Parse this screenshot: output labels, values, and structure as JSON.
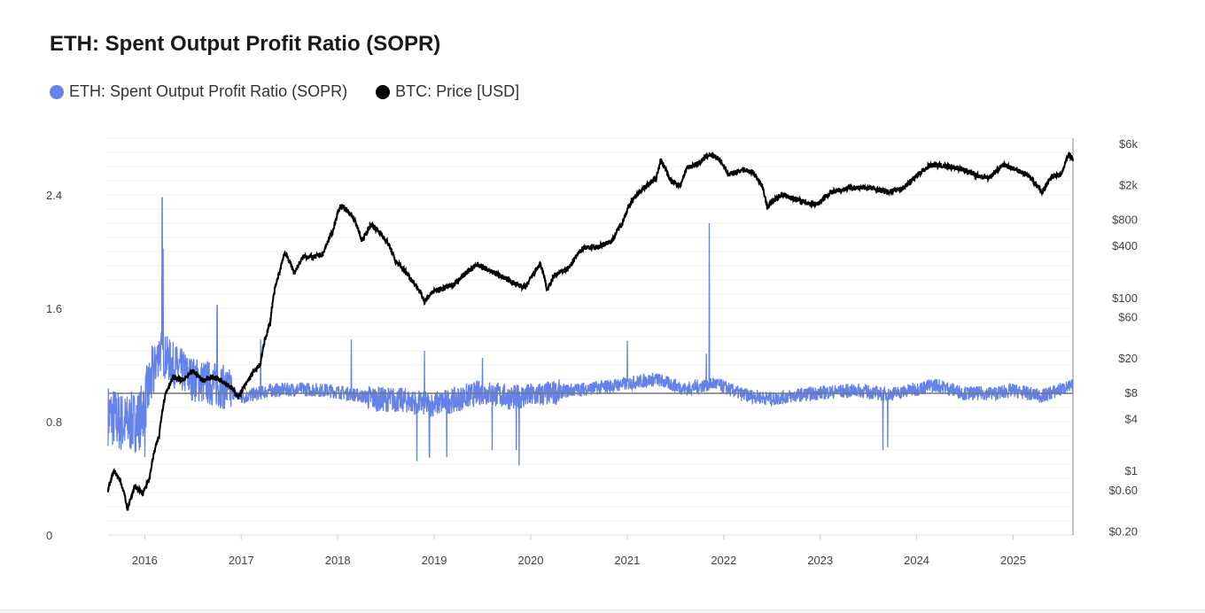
{
  "title": "ETH: Spent Output Profit Ratio (SOPR)",
  "legend": [
    {
      "label": "ETH: Spent Output Profit Ratio (SOPR)",
      "color": "#6482e8"
    },
    {
      "label": "BTC: Price [USD]",
      "color": "#000000"
    }
  ],
  "colors": {
    "sopr": "#6482e8",
    "btc": "#000000",
    "ref_line": "#777777"
  },
  "chart_data": {
    "type": "line",
    "title": "ETH: Spent Output Profit Ratio (SOPR)",
    "x_range": [
      2015.62,
      2025.62
    ],
    "x_ticks": [
      "2016",
      "2017",
      "2018",
      "2019",
      "2020",
      "2021",
      "2022",
      "2023",
      "2024",
      "2025"
    ],
    "y_left": {
      "ticks": [
        0,
        0.8,
        1.6,
        2.4
      ],
      "tick_labels": [
        "0",
        "0.8",
        "1.6",
        "2.4"
      ],
      "range": [
        0,
        2.8
      ]
    },
    "y_right": {
      "scale": "log",
      "ticks": [
        0.2,
        0.6,
        1,
        4,
        8,
        20,
        60,
        100,
        400,
        800,
        2000,
        6000
      ],
      "tick_labels": [
        "$0.20",
        "$0.60",
        "$1",
        "$4",
        "$8",
        "$20",
        "$60",
        "$100",
        "$400",
        "$800",
        "$2k",
        "$6k"
      ]
    },
    "reference_line": 1.0,
    "series": [
      {
        "name": "ETH: Spent Output Profit Ratio (SOPR)",
        "axis": "left",
        "baseline": [
          [
            2015.62,
            0.85
          ],
          [
            2015.8,
            0.78
          ],
          [
            2015.95,
            0.82
          ],
          [
            2016.05,
            1.05
          ],
          [
            2016.15,
            1.3
          ],
          [
            2016.3,
            1.2
          ],
          [
            2016.5,
            1.1
          ],
          [
            2016.8,
            1.05
          ],
          [
            2017.0,
            0.97
          ],
          [
            2017.3,
            1.02
          ],
          [
            2017.6,
            1.03
          ],
          [
            2017.9,
            1.02
          ],
          [
            2018.1,
            1.0
          ],
          [
            2018.4,
            0.96
          ],
          [
            2018.7,
            0.95
          ],
          [
            2018.95,
            0.92
          ],
          [
            2019.2,
            0.95
          ],
          [
            2019.5,
            1.01
          ],
          [
            2019.8,
            0.97
          ],
          [
            2020.1,
            0.99
          ],
          [
            2020.4,
            1.02
          ],
          [
            2020.7,
            1.04
          ],
          [
            2021.0,
            1.07
          ],
          [
            2021.3,
            1.1
          ],
          [
            2021.6,
            1.03
          ],
          [
            2021.9,
            1.07
          ],
          [
            2022.2,
            0.99
          ],
          [
            2022.5,
            0.96
          ],
          [
            2022.8,
            0.99
          ],
          [
            2023.1,
            1.01
          ],
          [
            2023.4,
            1.02
          ],
          [
            2023.7,
            0.99
          ],
          [
            2024.0,
            1.03
          ],
          [
            2024.2,
            1.06
          ],
          [
            2024.5,
            1.0
          ],
          [
            2024.8,
            1.0
          ],
          [
            2025.0,
            1.02
          ],
          [
            2025.3,
            0.98
          ],
          [
            2025.5,
            1.03
          ],
          [
            2025.62,
            1.05
          ]
        ],
        "spikes": [
          [
            2016.18,
            2.38
          ],
          [
            2016.19,
            2.02
          ],
          [
            2016.75,
            1.62
          ],
          [
            2017.2,
            1.38
          ],
          [
            2018.14,
            1.38
          ],
          [
            2018.9,
            1.3
          ],
          [
            2019.5,
            1.25
          ],
          [
            2021.0,
            1.37
          ],
          [
            2021.85,
            2.2
          ],
          [
            2021.82,
            1.28
          ],
          [
            2015.9,
            0.58
          ],
          [
            2016.0,
            0.55
          ],
          [
            2018.82,
            0.52
          ],
          [
            2018.95,
            0.55
          ],
          [
            2019.13,
            0.55
          ],
          [
            2019.6,
            0.6
          ],
          [
            2019.85,
            0.6
          ],
          [
            2019.88,
            0.49
          ],
          [
            2023.65,
            0.6
          ],
          [
            2023.7,
            0.62
          ]
        ]
      },
      {
        "name": "BTC: Price [USD]",
        "axis": "right",
        "points": [
          [
            2015.62,
            0.6
          ],
          [
            2015.68,
            1.0
          ],
          [
            2015.75,
            0.75
          ],
          [
            2015.82,
            0.35
          ],
          [
            2015.9,
            0.65
          ],
          [
            2015.98,
            0.55
          ],
          [
            2016.05,
            0.8
          ],
          [
            2016.15,
            2.5
          ],
          [
            2016.22,
            8
          ],
          [
            2016.3,
            12
          ],
          [
            2016.4,
            11
          ],
          [
            2016.5,
            14
          ],
          [
            2016.6,
            11
          ],
          [
            2016.7,
            12
          ],
          [
            2016.8,
            11
          ],
          [
            2016.9,
            9
          ],
          [
            2016.97,
            7
          ],
          [
            2017.05,
            10
          ],
          [
            2017.2,
            17
          ],
          [
            2017.3,
            50
          ],
          [
            2017.4,
            200
          ],
          [
            2017.45,
            330
          ],
          [
            2017.55,
            190
          ],
          [
            2017.65,
            300
          ],
          [
            2017.75,
            290
          ],
          [
            2017.85,
            320
          ],
          [
            2017.95,
            580
          ],
          [
            2018.03,
            1150
          ],
          [
            2018.15,
            880
          ],
          [
            2018.25,
            440
          ],
          [
            2018.35,
            700
          ],
          [
            2018.5,
            460
          ],
          [
            2018.6,
            260
          ],
          [
            2018.75,
            170
          ],
          [
            2018.9,
            90
          ],
          [
            2018.98,
            115
          ],
          [
            2019.2,
            140
          ],
          [
            2019.45,
            240
          ],
          [
            2019.55,
            210
          ],
          [
            2019.7,
            175
          ],
          [
            2019.85,
            140
          ],
          [
            2019.95,
            130
          ],
          [
            2020.1,
            240
          ],
          [
            2020.17,
            120
          ],
          [
            2020.25,
            180
          ],
          [
            2020.4,
            220
          ],
          [
            2020.55,
            380
          ],
          [
            2020.7,
            380
          ],
          [
            2020.85,
            460
          ],
          [
            2020.95,
            730
          ],
          [
            2021.05,
            1300
          ],
          [
            2021.15,
            1750
          ],
          [
            2021.3,
            2350
          ],
          [
            2021.35,
            3800
          ],
          [
            2021.45,
            2200
          ],
          [
            2021.55,
            1950
          ],
          [
            2021.62,
            3100
          ],
          [
            2021.75,
            3600
          ],
          [
            2021.85,
            4500
          ],
          [
            2021.95,
            4000
          ],
          [
            2022.05,
            2600
          ],
          [
            2022.2,
            3000
          ],
          [
            2022.3,
            2800
          ],
          [
            2022.4,
            1900
          ],
          [
            2022.45,
            1100
          ],
          [
            2022.6,
            1550
          ],
          [
            2022.75,
            1350
          ],
          [
            2022.85,
            1250
          ],
          [
            2022.97,
            1200
          ],
          [
            2023.1,
            1600
          ],
          [
            2023.3,
            1850
          ],
          [
            2023.5,
            1850
          ],
          [
            2023.7,
            1650
          ],
          [
            2023.85,
            1800
          ],
          [
            2023.95,
            2250
          ],
          [
            2024.15,
            3400
          ],
          [
            2024.3,
            3300
          ],
          [
            2024.45,
            3100
          ],
          [
            2024.6,
            2600
          ],
          [
            2024.75,
            2400
          ],
          [
            2024.9,
            3400
          ],
          [
            2025.0,
            3100
          ],
          [
            2025.15,
            2600
          ],
          [
            2025.3,
            1600
          ],
          [
            2025.4,
            2500
          ],
          [
            2025.5,
            2600
          ],
          [
            2025.58,
            4500
          ],
          [
            2025.62,
            3900
          ]
        ]
      }
    ]
  }
}
